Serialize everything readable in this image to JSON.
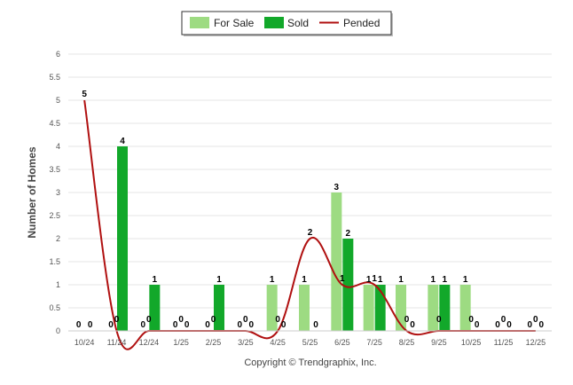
{
  "chart_data": {
    "type": "bar",
    "ylabel": "Number of Homes",
    "ylim": [
      0,
      6
    ],
    "yticks": [
      "0",
      "0.5",
      "1",
      "1.5",
      "2",
      "2.5",
      "3",
      "3.5",
      "4",
      "4.5",
      "5",
      "5.5",
      "6"
    ],
    "categories": [
      "10/24",
      "11/24",
      "12/24",
      "1/25",
      "2/25",
      "3/25",
      "4/25",
      "5/25",
      "6/25",
      "7/25",
      "8/25",
      "9/25",
      "10/25",
      "11/25",
      "12/25"
    ],
    "series": [
      {
        "name": "For Sale",
        "type": "bar",
        "color": "#9ddb82",
        "values": [
          0,
          0,
          0,
          0,
          0,
          0,
          1,
          1,
          3,
          1,
          1,
          1,
          1,
          0,
          0
        ]
      },
      {
        "name": "Sold",
        "type": "bar",
        "color": "#12a82a",
        "values": [
          0,
          4,
          1,
          0,
          1,
          0,
          0,
          0,
          2,
          1,
          0,
          1,
          0,
          0,
          0
        ]
      },
      {
        "name": "Pended",
        "type": "line",
        "color": "#b01010",
        "values": [
          5,
          0,
          0,
          0,
          0,
          0,
          0,
          2,
          1,
          1,
          0,
          0,
          0,
          0,
          0
        ]
      }
    ],
    "legend_position": "top-center",
    "grid": true
  },
  "copyright": "Copyright © Trendgraphix, Inc."
}
